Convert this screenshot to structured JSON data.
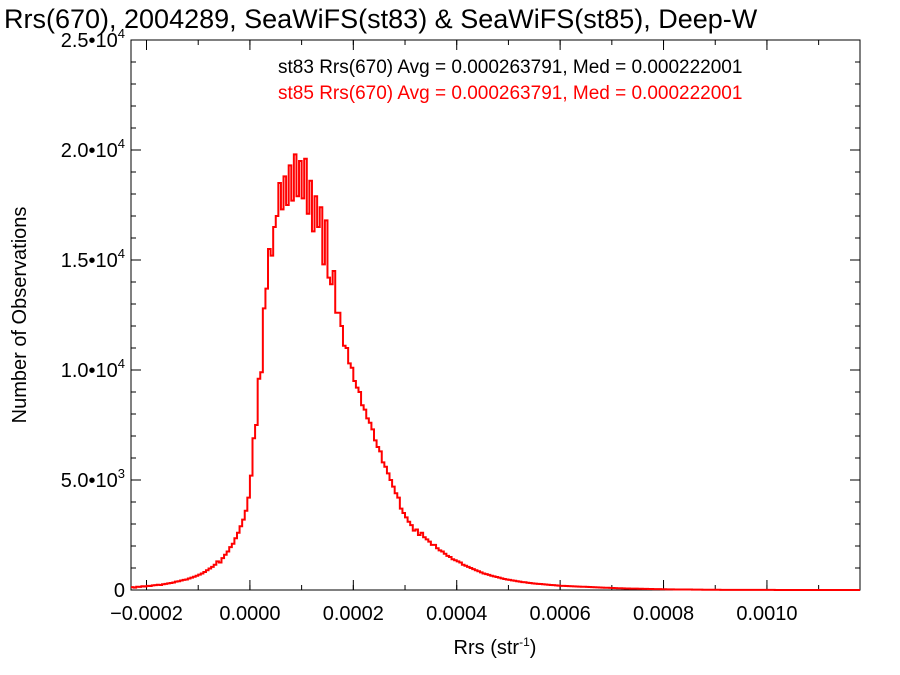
{
  "chart_data": {
    "type": "histogram",
    "title": "Rrs(670), 2004289, SeaWiFS(st83) & SeaWiFS(st85), Deep-W",
    "xlabel": "Rrs (str",
    "xlabel_sup": "-1",
    "xlabel_close": ")",
    "ylabel": "Number of Observations",
    "xlim": [
      -0.00023,
      0.00118
    ],
    "ylim": [
      0,
      25000
    ],
    "x_ticks": [
      -0.0002,
      0.0,
      0.0002,
      0.0004,
      0.0006,
      0.0008,
      0.001
    ],
    "x_tick_labels": [
      "−0.0002",
      "0.0000",
      "0.0002",
      "0.0004",
      "0.0006",
      "0.0008",
      "0.0010"
    ],
    "y_ticks": [
      0,
      5000,
      10000,
      15000,
      20000,
      25000
    ],
    "y_tick_labels": [
      {
        "base": "0",
        "exp": ""
      },
      {
        "base": "5.0•10",
        "exp": "3"
      },
      {
        "base": "1.0•10",
        "exp": "4"
      },
      {
        "base": "1.5•10",
        "exp": "4"
      },
      {
        "base": "2.0•10",
        "exp": "4"
      },
      {
        "base": "2.5•10",
        "exp": "4"
      }
    ],
    "grid": false,
    "legend_position": "top-right",
    "legend": [
      {
        "text": "st83 Rrs(670) Avg = 0.000263791, Med = 0.000222001",
        "color": "#000000"
      },
      {
        "text": "st85 Rrs(670) Avg = 0.000263791, Med = 0.000222001",
        "color": "#ff0000"
      }
    ],
    "bin_width": 5e-06,
    "series": [
      {
        "name": "st85 Rrs(670)",
        "color": "#ff0000",
        "x_start": -0.00023,
        "values": [
          130,
          110,
          150,
          140,
          170,
          160,
          190,
          180,
          210,
          220,
          240,
          230,
          260,
          280,
          300,
          320,
          340,
          380,
          400,
          430,
          460,
          480,
          520,
          560,
          600,
          650,
          700,
          750,
          820,
          900,
          980,
          1050,
          1150,
          1300,
          1250,
          1450,
          1600,
          1750,
          1950,
          2100,
          2350,
          2600,
          2900,
          3200,
          3600,
          4200,
          5200,
          6900,
          7500,
          9600,
          9900,
          12800,
          13700,
          15500,
          15200,
          16500,
          17000,
          18500,
          17300,
          18800,
          17500,
          19300,
          17700,
          19800,
          17900,
          19500,
          17800,
          19600,
          17100,
          18600,
          16300,
          17900,
          16500,
          17400,
          14800,
          16800,
          14200,
          13900,
          14500,
          12600,
          12600,
          12000,
          11100,
          11000,
          10300,
          10100,
          9500,
          9200,
          9000,
          8400,
          8200,
          7800,
          7600,
          7300,
          6800,
          6500,
          6300,
          5800,
          5600,
          5300,
          5000,
          4700,
          4400,
          4200,
          3700,
          3500,
          3300,
          3100,
          2950,
          2700,
          2750,
          2500,
          2600,
          2400,
          2300,
          2200,
          2050,
          2050,
          1900,
          1800,
          1750,
          1650,
          1550,
          1500,
          1400,
          1350,
          1300,
          1250,
          1150,
          1100,
          1050,
          1000,
          950,
          900,
          850,
          800,
          750,
          720,
          690,
          650,
          620,
          590,
          560,
          530,
          500,
          480,
          460,
          440,
          420,
          400,
          380,
          360,
          350,
          330,
          320,
          300,
          290,
          280,
          270,
          260,
          250,
          240,
          230,
          220,
          210,
          200,
          190,
          185,
          180,
          175,
          170,
          165,
          160,
          155,
          150,
          145,
          140,
          135,
          130,
          125,
          120,
          115,
          110,
          105,
          100,
          95,
          90,
          85,
          80,
          80,
          75,
          70,
          70,
          65,
          60,
          60,
          55,
          55,
          50,
          50,
          45,
          45,
          40,
          40,
          40,
          35,
          35,
          30,
          30,
          30,
          25,
          25,
          25,
          20,
          20,
          20,
          20,
          15,
          15,
          15,
          15,
          12,
          12,
          12,
          10,
          10,
          10,
          10,
          8,
          8,
          8,
          6,
          6,
          6,
          5,
          5,
          5,
          5,
          5,
          4,
          4,
          4,
          4,
          3,
          3,
          3,
          3,
          3,
          3,
          2,
          2,
          2,
          2,
          2,
          2,
          2,
          2,
          2,
          2,
          2,
          2,
          2,
          2,
          2,
          2,
          2,
          2,
          2,
          2,
          2,
          2,
          2,
          2,
          2,
          2,
          2,
          2,
          2,
          2,
          2,
          2,
          2,
          2,
          2,
          2,
          2,
          2
        ]
      }
    ]
  }
}
